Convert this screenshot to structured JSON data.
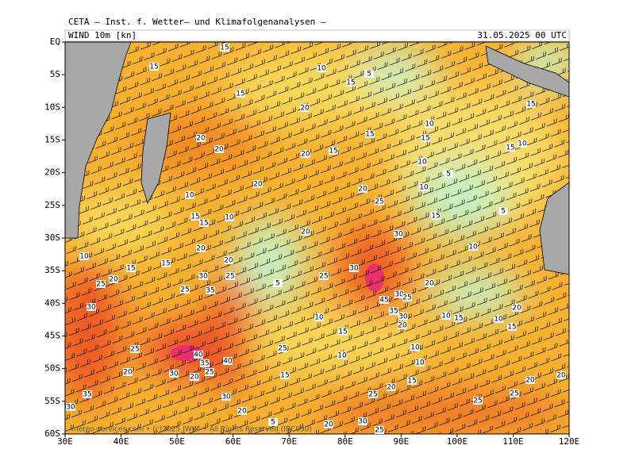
{
  "header": {
    "title": "CETA — Inst. f. Wetter— und Klimafolgenanalysen —",
    "field": "WIND 10m [kn]",
    "valid": "31.05.2025 00 UTC"
  },
  "map": {
    "lat_range": [
      0,
      -60
    ],
    "lon_range": [
      30,
      120
    ],
    "lat_ticks": [
      {
        "value": 0,
        "label": "EQ"
      },
      {
        "value": -5,
        "label": "5S"
      },
      {
        "value": -10,
        "label": "10S"
      },
      {
        "value": -15,
        "label": "15S"
      },
      {
        "value": -20,
        "label": "20S"
      },
      {
        "value": -25,
        "label": "25S"
      },
      {
        "value": -30,
        "label": "30S"
      },
      {
        "value": -35,
        "label": "35S"
      },
      {
        "value": -40,
        "label": "40S"
      },
      {
        "value": -45,
        "label": "45S"
      },
      {
        "value": -50,
        "label": "50S"
      },
      {
        "value": -55,
        "label": "55S"
      },
      {
        "value": -60,
        "label": "60S"
      }
    ],
    "lon_ticks": [
      {
        "value": 30,
        "label": "30E"
      },
      {
        "value": 40,
        "label": "40E"
      },
      {
        "value": 50,
        "label": "50E"
      },
      {
        "value": 60,
        "label": "60E"
      },
      {
        "value": 70,
        "label": "70E"
      },
      {
        "value": 80,
        "label": "80E"
      },
      {
        "value": 90,
        "label": "90E"
      },
      {
        "value": 100,
        "label": "100E"
      },
      {
        "value": 110,
        "label": "110E"
      },
      {
        "value": 120,
        "label": "120E"
      }
    ],
    "wind_labels": [
      15,
      15,
      10,
      15,
      5,
      15,
      20,
      15,
      10,
      15,
      15,
      20,
      20,
      20,
      15,
      15,
      10,
      10,
      5,
      20,
      20,
      10,
      25,
      10,
      15,
      15,
      10,
      15,
      5,
      20,
      30,
      10,
      20,
      15,
      20,
      15,
      10,
      30,
      30,
      25,
      20,
      25,
      25,
      5,
      20,
      25,
      35,
      30,
      45,
      30,
      25,
      35,
      30,
      10,
      10,
      15,
      20,
      20,
      10,
      15,
      15,
      25,
      40,
      35,
      40,
      25,
      10,
      10,
      10,
      20,
      25,
      30,
      20,
      15,
      15,
      20,
      20,
      20,
      35,
      30,
      25,
      25,
      25,
      20,
      30,
      5,
      20,
      30,
      25
    ],
    "footer": "meteo-services.com • (c)2025 IWKF • All Rights Reserved (IBC030)"
  }
}
